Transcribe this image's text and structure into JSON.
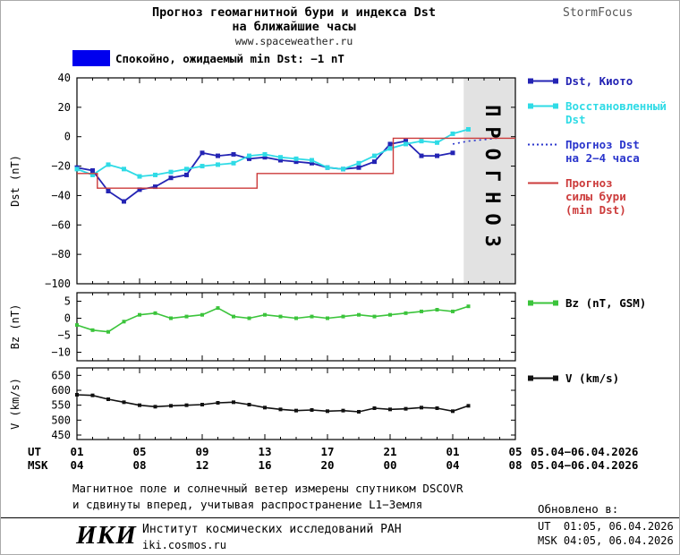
{
  "header": {
    "title_line1": "Прогноз геомагнитной бури и индекса Dst",
    "title_line2": "на ближайшие часы",
    "website": "www.spaceweather.ru",
    "brand": "StormFocus"
  },
  "status_banner": {
    "label": "Спокойно, ожидаемый min Dst: −1 nT",
    "color": "#0000ee"
  },
  "chart_data": {
    "type": "line",
    "title": "Прогноз геомагнитной бури и индекса Dst на ближайшие часы",
    "x_unit": "hour, UT",
    "panels": [
      {
        "id": "dst",
        "ylabel": "Dst (nT)",
        "ylim": [
          -100,
          40
        ],
        "yticks": [
          40,
          20,
          0,
          -20,
          -40,
          -60,
          -80,
          -100
        ],
        "xlim": [
          1,
          29
        ],
        "xticks": [
          1,
          5,
          9,
          13,
          17,
          21,
          25,
          29
        ],
        "forecast_band": {
          "from": 25.7,
          "to": 29,
          "label": "ПРОГНОЗ"
        },
        "series": [
          {
            "id": "dst-kyoto",
            "name": "Dst, Киото",
            "color": "#2424b4",
            "marker": true,
            "msize": 5,
            "width": 1.8,
            "x": [
              1,
              2,
              3,
              4,
              5,
              6,
              7,
              8,
              9,
              10,
              11,
              12,
              13,
              14,
              15,
              16,
              17,
              18,
              19,
              20,
              21,
              22,
              23,
              24,
              25
            ],
            "y": [
              -21,
              -23,
              -37,
              -44,
              -36,
              -34,
              -28,
              -26,
              -11,
              -13,
              -12,
              -15,
              -14,
              -16,
              -17,
              -18,
              -21,
              -22,
              -21,
              -17,
              -5,
              -3,
              -13,
              -13,
              -11
            ]
          },
          {
            "id": "dst-reconstructed",
            "name": "Восстановленный Dst",
            "color": "#2fdbe6",
            "marker": true,
            "msize": 5,
            "width": 1.8,
            "x": [
              1,
              2,
              3,
              4,
              5,
              6,
              7,
              8,
              9,
              10,
              11,
              12,
              13,
              14,
              15,
              16,
              17,
              18,
              19,
              20,
              21,
              22,
              23,
              24,
              25,
              26
            ],
            "y": [
              -22,
              -26,
              -19,
              -22,
              -27,
              -26,
              -24,
              -22,
              -20,
              -19,
              -18,
              -13,
              -12,
              -14,
              -15,
              -16,
              -21,
              -22,
              -18,
              -13,
              -8,
              -5,
              -3,
              -4,
              2,
              5
            ]
          },
          {
            "id": "dst-forecast",
            "name": "Прогноз Dst на 2−4 часа",
            "color": "#2a35cc",
            "dashed": true,
            "width": 1.6,
            "x": [
              25,
              26,
              27,
              27.8
            ],
            "y": [
              -5,
              -3,
              -2,
              -1
            ]
          },
          {
            "id": "storm-forecast",
            "name": "Прогноз силы бури (min Dst)",
            "color": "#cc3b3b",
            "width": 1.4,
            "x": [
              1,
              2.3,
              2.3,
              12.5,
              12.5,
              21.2,
              21.2,
              29
            ],
            "y": [
              -25,
              -25,
              -35,
              -35,
              -25,
              -25,
              -1,
              -1
            ]
          }
        ]
      },
      {
        "id": "bz",
        "ylabel": "Bz (nT)",
        "ylim": [
          -12.5,
          7.5
        ],
        "yticks": [
          5,
          0,
          -5,
          -10
        ],
        "xlim": [
          1,
          29
        ],
        "xticks": [
          1,
          5,
          9,
          13,
          17,
          21,
          25,
          29
        ],
        "series": [
          {
            "id": "bz-gsm",
            "name": "Bz (nT, GSM)",
            "color": "#3bc43b",
            "marker": true,
            "msize": 4,
            "width": 1.6,
            "x": [
              1,
              2,
              3,
              4,
              5,
              6,
              7,
              8,
              9,
              10,
              11,
              12,
              13,
              14,
              15,
              16,
              17,
              18,
              19,
              20,
              21,
              22,
              23,
              24,
              25,
              26
            ],
            "y": [
              -2,
              -3.5,
              -4,
              -1,
              1,
              1.5,
              0,
              0.5,
              1,
              3,
              0.5,
              0,
              1,
              0.5,
              0,
              0.5,
              0,
              0.5,
              1,
              0.5,
              1,
              1.5,
              2,
              2.5,
              2,
              3.5
            ]
          }
        ]
      },
      {
        "id": "v",
        "ylabel": "V (km/s)",
        "ylim": [
          435,
          675
        ],
        "yticks": [
          650,
          600,
          550,
          500,
          450
        ],
        "xlim": [
          1,
          29
        ],
        "xticks": [
          1,
          5,
          9,
          13,
          17,
          21,
          25,
          29
        ],
        "series": [
          {
            "id": "v-speed",
            "name": "V (km/s)",
            "color": "#111111",
            "marker": true,
            "msize": 4,
            "width": 1.6,
            "x": [
              1,
              2,
              3,
              4,
              5,
              6,
              7,
              8,
              9,
              10,
              11,
              12,
              13,
              14,
              15,
              16,
              17,
              18,
              19,
              20,
              21,
              22,
              23,
              24,
              25,
              26
            ],
            "y": [
              585,
              583,
              570,
              560,
              550,
              545,
              548,
              550,
              552,
              558,
              560,
              552,
              542,
              536,
              532,
              534,
              530,
              532,
              528,
              540,
              536,
              538,
              542,
              540,
              530,
              548
            ]
          }
        ]
      }
    ]
  },
  "xaxis": {
    "ut_label": "UT",
    "msk_label": "MSK",
    "ut_ticks": [
      "01",
      "05",
      "09",
      "13",
      "17",
      "21",
      "01",
      "05"
    ],
    "msk_ticks": [
      "04",
      "08",
      "12",
      "16",
      "20",
      "00",
      "04",
      "08"
    ],
    "ut_date": "05.04−06.04.2026",
    "msk_date": "05.04−06.04.2026"
  },
  "legend": {
    "dst": [
      {
        "label": "Dst, Киото",
        "color": "#2424b4",
        "style": "marker"
      },
      {
        "label": "Восстановленный\nDst",
        "color": "#2fdbe6",
        "style": "marker"
      },
      {
        "label": "Прогноз Dst\nна 2−4 часа",
        "color": "#2a35cc",
        "style": "dotted"
      },
      {
        "label": "Прогноз\nсилы бури\n(min Dst)",
        "color": "#cc3b3b",
        "style": "line"
      }
    ],
    "bz": [
      {
        "label": "Bz (nT, GSM)",
        "color": "#3bc43b",
        "text_color": "#000000",
        "style": "marker"
      }
    ],
    "v": [
      {
        "label": "V (km/s)",
        "color": "#111111",
        "text_color": "#000000",
        "style": "marker"
      }
    ]
  },
  "footnote": {
    "line1": "Магнитное поле и солнечный ветер измерены спутником DSCOVR",
    "line2": "и сдвинуты вперед, учитывая распространение L1−Земля"
  },
  "footer": {
    "logo": "ИКИ",
    "institute": "Институт космических исследований РАН",
    "site": "iki.cosmos.ru",
    "updated_label": "Обновлено в:",
    "updated_ut": "UT  01:05, 06.04.2026",
    "updated_msk": "MSK 04:05, 06.04.2026"
  }
}
